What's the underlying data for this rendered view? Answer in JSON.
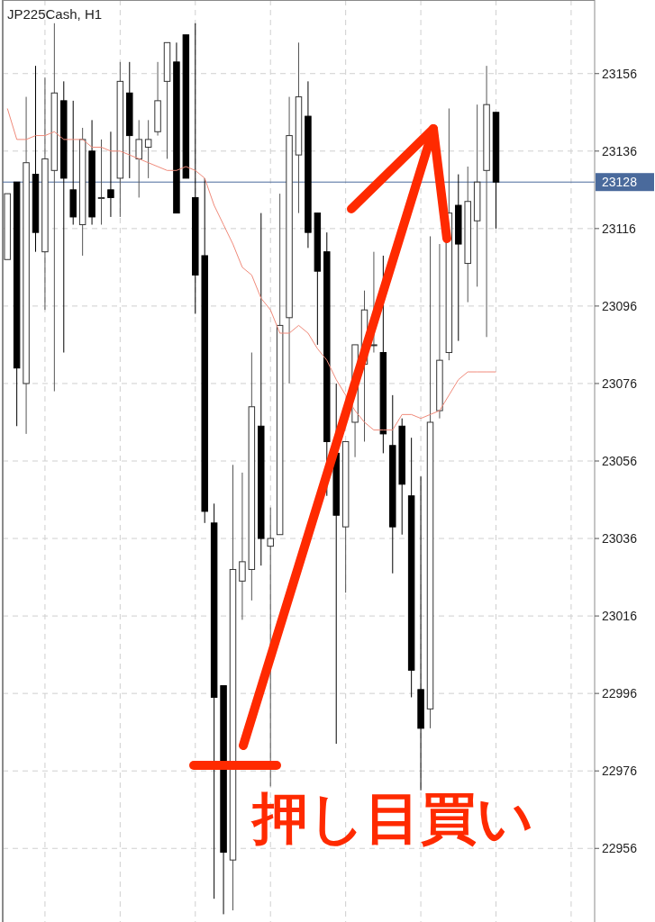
{
  "chart_data": {
    "type": "candlestick",
    "title": "JP225Cash, H1",
    "categories": [
      null,
      null,
      null,
      null,
      null,
      null,
      null,
      null,
      null,
      null,
      null,
      null,
      null,
      null,
      null,
      null,
      null,
      null,
      null,
      null,
      null,
      null,
      null,
      null,
      null,
      null,
      null,
      null,
      null,
      null,
      null,
      null,
      null,
      null,
      null,
      null,
      null,
      null,
      null,
      null,
      null,
      null,
      null,
      null,
      null,
      null,
      null,
      null,
      null,
      null,
      null,
      null,
      null
    ],
    "ohlc": [
      [
        23108,
        23125,
        23108,
        23125
      ],
      [
        23128,
        23128,
        23065,
        23080
      ],
      [
        23076,
        23150,
        23063,
        23133
      ],
      [
        23130,
        23158,
        23110,
        23115
      ],
      [
        23110,
        23155,
        23095,
        23134
      ],
      [
        23131,
        23169,
        23074,
        23151
      ],
      [
        23149,
        23154,
        23084,
        23129
      ],
      [
        23126,
        23149,
        23117,
        23119
      ],
      [
        23117,
        23142,
        23109,
        23139
      ],
      [
        23136,
        23144,
        23117,
        23119
      ],
      [
        23124,
        23139,
        23117,
        23124
      ],
      [
        23126,
        23141,
        23119,
        23124
      ],
      [
        23129,
        23159,
        23119,
        23154
      ],
      [
        23151,
        23159,
        23129,
        23140
      ],
      [
        23134,
        23144,
        23124,
        23139
      ],
      [
        23137,
        23144,
        23129,
        23139
      ],
      [
        23141,
        23159,
        23140,
        23149
      ],
      [
        23154,
        23164,
        23134,
        23164
      ],
      [
        23159,
        23164,
        23120,
        23120
      ],
      [
        23166,
        23166,
        23129,
        23129
      ],
      [
        23124,
        23169,
        23094,
        23104
      ],
      [
        23109,
        23129,
        23040,
        23043
      ],
      [
        23040,
        23045,
        22943,
        22995
      ],
      [
        22998,
        22998,
        22939,
        22955
      ],
      [
        22953,
        23055,
        22940,
        23028
      ],
      [
        23025,
        23053,
        23015,
        23030
      ],
      [
        23028,
        23084,
        23020,
        23070
      ],
      [
        23065,
        23120,
        23029,
        23036
      ],
      [
        23034,
        23044,
        22972,
        23036
      ],
      [
        23037,
        23125,
        23037,
        23091
      ],
      [
        23093,
        23150,
        23076,
        23140
      ],
      [
        23135,
        23164,
        23120,
        23150
      ],
      [
        23145,
        23154,
        23111,
        23115
      ],
      [
        23120,
        23120,
        23086,
        23105
      ],
      [
        23110,
        23115,
        23047,
        23061
      ],
      [
        23058,
        23076,
        22983,
        23042
      ],
      [
        23039,
        23061,
        23022,
        23061
      ],
      [
        23066,
        23086,
        23057,
        23086
      ],
      [
        23081,
        23100,
        23061,
        23095
      ],
      [
        23086,
        23110,
        23084,
        23086
      ],
      [
        23084,
        23109,
        23058,
        23063
      ],
      [
        23060,
        23073,
        23027,
        23039
      ],
      [
        23065,
        23067,
        23037,
        23050
      ],
      [
        23047,
        23062,
        22995,
        23002
      ],
      [
        22997,
        23052,
        22971,
        22987
      ],
      [
        22992,
        23114,
        22987,
        23066
      ],
      [
        23069,
        23112,
        23067,
        23082
      ],
      [
        23084,
        23147,
        23082,
        23120
      ],
      [
        23122,
        23130,
        23087,
        23112
      ],
      [
        23107,
        23132,
        23097,
        23123
      ],
      [
        23118,
        23148,
        23101,
        23128
      ],
      [
        23131,
        23158,
        23088,
        23148
      ],
      [
        23146,
        23146,
        23116,
        23128
      ]
    ],
    "series": [
      {
        "type": "line",
        "color": "#f08a7a",
        "values": [
          23147,
          23139,
          23139,
          23140,
          23140,
          23141,
          23139,
          23139,
          23139,
          23137,
          23137,
          23136,
          23136,
          23135,
          23134,
          23133,
          23132,
          23131,
          23131,
          23132,
          23131,
          23129,
          23122,
          23117,
          23112,
          23106,
          23104,
          23098,
          23095,
          23089,
          23089,
          23091,
          23089,
          23085,
          23082,
          23077,
          23073,
          23069,
          23066,
          23064,
          23064,
          23064,
          23068,
          23068,
          23067,
          23068,
          23069,
          23073,
          23077,
          23079,
          23079,
          23079,
          23079
        ]
      }
    ],
    "ylim": [
      22937,
      23175
    ],
    "yticks": [
      22956,
      22976,
      22996,
      23016,
      23036,
      23056,
      23076,
      23096,
      23116,
      23136,
      23156
    ],
    "ref_lines": [
      {
        "axis": "y",
        "value": 23128,
        "label": "23128",
        "color": "#4a6a9c"
      }
    ],
    "annotations": [
      "押し目買い"
    ],
    "grid": true,
    "tick_labels": "y"
  }
}
